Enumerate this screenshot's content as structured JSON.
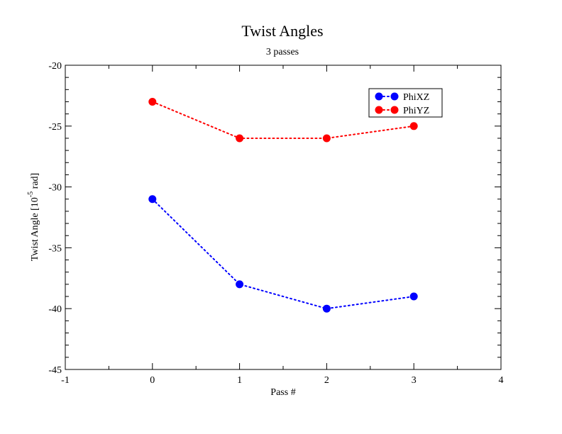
{
  "chart_data": {
    "type": "line",
    "title": "Twist Angles",
    "subtitle": "3 passes",
    "xlabel": "Pass #",
    "ylabel": {
      "main": "Twist Angle [10",
      "exponent": "-5",
      "unit": " rad]"
    },
    "xlim": [
      -1,
      4
    ],
    "ylim": [
      -45,
      -20
    ],
    "xticks": [
      -1,
      0,
      1,
      2,
      3,
      4
    ],
    "yticks": [
      -45,
      -40,
      -35,
      -30,
      -25,
      -20
    ],
    "xtick_labels": [
      "-1",
      "0",
      "1",
      "2",
      "3",
      "4"
    ],
    "ytick_labels": [
      "-45",
      "-40",
      "-35",
      "-30",
      "-25",
      "-20"
    ],
    "grid": false,
    "legend_position": "top-right",
    "series": [
      {
        "name": "PhiXZ",
        "color": "#0000ff",
        "line_style": "dotted",
        "marker": "circle",
        "x": [
          0,
          1,
          2,
          3
        ],
        "y": [
          -31,
          -38,
          -40,
          -39
        ]
      },
      {
        "name": "PhiYZ",
        "color": "#ff0000",
        "line_style": "dotted",
        "marker": "circle",
        "x": [
          0,
          1,
          2,
          3
        ],
        "y": [
          -23,
          -26,
          -26,
          -25
        ]
      }
    ]
  }
}
